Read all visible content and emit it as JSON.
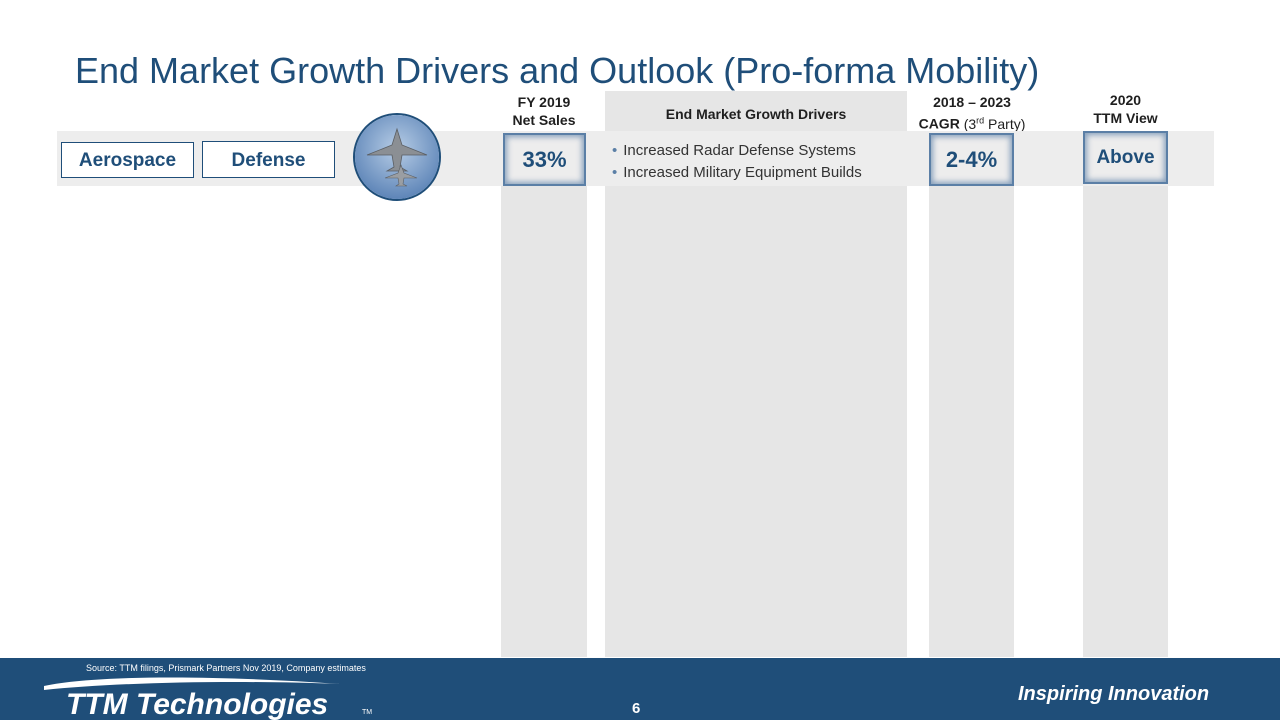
{
  "title": "End Market Growth Drivers and Outlook (Pro-forma Mobility)",
  "headers": {
    "net_sales": [
      "FY 2019",
      "Net Sales"
    ],
    "drivers": "End Market Growth Drivers",
    "cagr_line1": "2018 – 2023",
    "cagr_bold": "CAGR",
    "cagr_paren_open": "(3",
    "cagr_sup": "rd",
    "cagr_paren_close": " Party)",
    "ttm_view": [
      "2020",
      "TTM View"
    ]
  },
  "row": {
    "segment": "Aerospace",
    "subsegment": "Defense",
    "image_icon": "fighter-jets-photo",
    "net_sales": "33%",
    "drivers": [
      "Increased Radar Defense Systems",
      "Increased Military Equipment Builds"
    ],
    "cagr": "2-4%",
    "ttm_view": "Above"
  },
  "footer": {
    "source": "Source: TTM filings, Prismark Partners Nov 2019, Company estimates",
    "logo": "TTM Technologies",
    "logo_tm": "TM",
    "tagline": "Inspiring Innovation",
    "page": "6"
  },
  "colors": {
    "primary": "#1f4e79",
    "column_bg": "#e6e6e6",
    "band_bg": "#ededed",
    "accent": "#5b7fa6"
  }
}
